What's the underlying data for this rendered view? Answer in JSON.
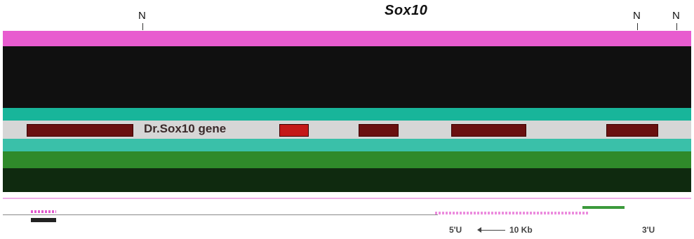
{
  "header": {
    "gene_title": "Sox10",
    "markers": [
      "N",
      "N",
      "N"
    ]
  },
  "gene_track": {
    "gene_label": "Dr.Sox10 gene"
  },
  "scale": {
    "left_label": "5'U",
    "direction_label": "10 Kb",
    "right_label": "3'U"
  },
  "colors": {
    "pink_band": "#e85ccf",
    "dark_band": "#101010",
    "teal_band": "#18b59a",
    "green_band": "#2f8a2a",
    "exon": "#6a1010",
    "exon_highlight": "#c41818"
  }
}
